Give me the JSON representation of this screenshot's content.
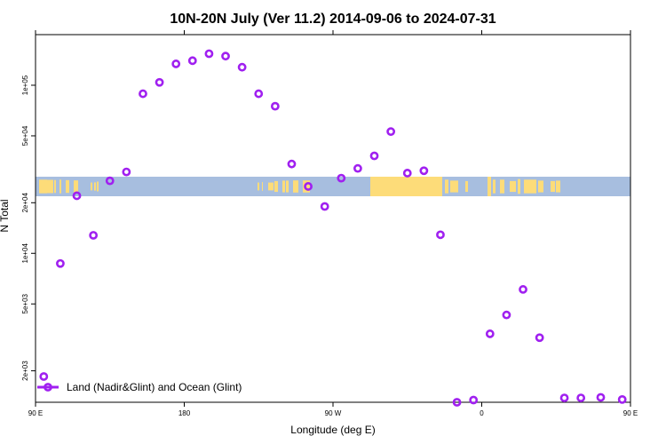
{
  "chart_data": {
    "type": "scatter",
    "title": "10N-20N July (Ver 11.2)   2014-09-06 to 2024-07-31",
    "xlabel": "Longitude (deg E)",
    "ylabel": "N Total",
    "xlim": [
      90,
      450
    ],
    "ylim_log": [
      1300,
      200000
    ],
    "yscale": "log",
    "x_ticks": [
      {
        "value": 90,
        "label": "90 E"
      },
      {
        "value": 180,
        "label": "180"
      },
      {
        "value": 270,
        "label": "90 W"
      },
      {
        "value": 360,
        "label": "0"
      },
      {
        "value": 450,
        "label": "90 E"
      }
    ],
    "x_ticks_top": [
      90,
      180,
      270,
      360,
      450
    ],
    "y_ticks": [
      {
        "value": 2000,
        "label": "2e+03"
      },
      {
        "value": 5000,
        "label": "5e+03"
      },
      {
        "value": 10000,
        "label": "1e+04"
      },
      {
        "value": 20000,
        "label": "2e+04"
      },
      {
        "value": 50000,
        "label": "5e+04"
      },
      {
        "value": 100000,
        "label": "1e+05"
      }
    ],
    "legend": {
      "position": "bottom-left",
      "label": "Land (Nadir&Glint) and Ocean (Glint)"
    },
    "map_strip": {
      "lat_range": "10N-20N",
      "ocean_color": "#a7bedf",
      "land_color": "#fddc79"
    },
    "series": [
      {
        "name": "Land (Nadir&Glint) and Ocean (Glint)",
        "color": "#a020f0",
        "points": [
          {
            "x": 95,
            "y": 1850
          },
          {
            "x": 105,
            "y": 8700
          },
          {
            "x": 115,
            "y": 22000
          },
          {
            "x": 125,
            "y": 12800
          },
          {
            "x": 135,
            "y": 27000
          },
          {
            "x": 145,
            "y": 30500
          },
          {
            "x": 155,
            "y": 89000
          },
          {
            "x": 165,
            "y": 104000
          },
          {
            "x": 175,
            "y": 134000
          },
          {
            "x": 185,
            "y": 140000
          },
          {
            "x": 195,
            "y": 154000
          },
          {
            "x": 205,
            "y": 149000
          },
          {
            "x": 215,
            "y": 128000
          },
          {
            "x": 225,
            "y": 89000
          },
          {
            "x": 235,
            "y": 75000
          },
          {
            "x": 245,
            "y": 34000
          },
          {
            "x": 255,
            "y": 25000
          },
          {
            "x": 265,
            "y": 19000
          },
          {
            "x": 275,
            "y": 28000
          },
          {
            "x": 285,
            "y": 32000
          },
          {
            "x": 295,
            "y": 38000
          },
          {
            "x": 305,
            "y": 53000
          },
          {
            "x": 315,
            "y": 30000
          },
          {
            "x": 325,
            "y": 31000
          },
          {
            "x": 335,
            "y": 12900
          },
          {
            "x": 345,
            "y": 1300
          },
          {
            "x": 355,
            "y": 1340
          },
          {
            "x": 365,
            "y": 3320
          },
          {
            "x": 375,
            "y": 4300
          },
          {
            "x": 385,
            "y": 6100
          },
          {
            "x": 395,
            "y": 3150
          },
          {
            "x": 410,
            "y": 1380
          },
          {
            "x": 420,
            "y": 1380
          },
          {
            "x": 432,
            "y": 1390
          },
          {
            "x": 445,
            "y": 1350
          }
        ]
      }
    ]
  }
}
